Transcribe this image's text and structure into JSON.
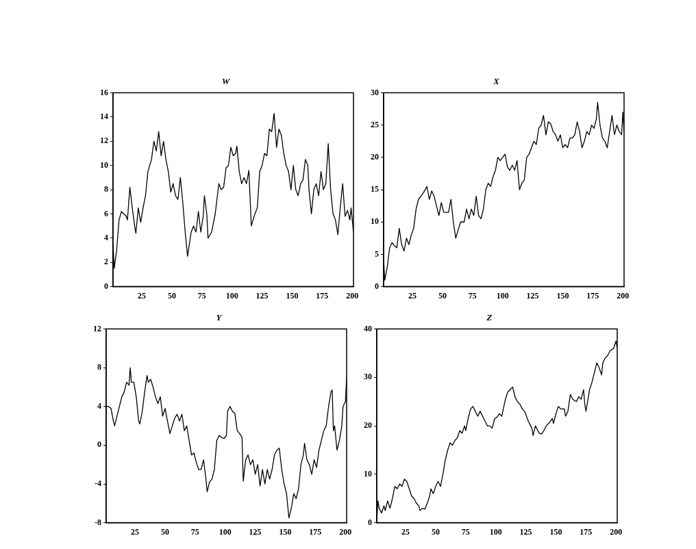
{
  "chart_data": [
    {
      "type": "line",
      "title": "W",
      "color": "#000000",
      "xlim": [
        1,
        201
      ],
      "xticks": [
        25,
        50,
        75,
        100,
        125,
        150,
        175,
        200
      ],
      "ylim": [
        0,
        16
      ],
      "yticks": [
        0,
        2,
        4,
        6,
        8,
        10,
        12,
        14,
        16
      ],
      "x": [
        1,
        2,
        4,
        6,
        8,
        12,
        13,
        15,
        17,
        19,
        20,
        22,
        24,
        26,
        28,
        30,
        33,
        35,
        37,
        39,
        41,
        43,
        45,
        47,
        49,
        51,
        53,
        55,
        57,
        59,
        61,
        63,
        66,
        68,
        70,
        72,
        74,
        76,
        77,
        79,
        80,
        83,
        86,
        89,
        91,
        93,
        95,
        97,
        99,
        101,
        103,
        104,
        106,
        108,
        110,
        112,
        114,
        116,
        119,
        121,
        123,
        125,
        127,
        129,
        131,
        133,
        135,
        137,
        139,
        141,
        143,
        145,
        147,
        149,
        151,
        153,
        155,
        157,
        159,
        161,
        163,
        164,
        166,
        168,
        170,
        172,
        174,
        176,
        178,
        180,
        182,
        184,
        186,
        188,
        190,
        192,
        194,
        196,
        198,
        199,
        201
      ],
      "values": [
        3.5,
        1.5,
        3,
        5.5,
        6.2,
        5.8,
        5.5,
        8.2,
        6.5,
        5,
        4.4,
        6.5,
        5.3,
        6.5,
        7.5,
        9.5,
        10.5,
        12,
        11.2,
        12.8,
        10.8,
        12,
        10.5,
        9.5,
        7.8,
        8.5,
        7.5,
        7.2,
        9,
        7,
        4.5,
        2.5,
        4.5,
        5,
        4.5,
        6.2,
        4.5,
        5.8,
        7.5,
        6,
        4,
        4.5,
        6,
        8.5,
        8,
        8.2,
        9.8,
        10,
        11.5,
        10.8,
        11,
        11.6,
        9.5,
        8.5,
        9,
        8.5,
        9.6,
        5,
        6,
        6.5,
        9.5,
        10,
        11,
        10.8,
        13,
        12.8,
        14.3,
        11.5,
        13,
        12.5,
        11,
        10,
        9.5,
        8,
        10,
        8,
        7.5,
        8.5,
        8.8,
        10.5,
        10,
        8,
        6,
        8,
        8.5,
        7.5,
        9.5,
        8,
        8.5,
        11.8,
        8,
        6,
        5.5,
        4.3,
        6.5,
        8.5,
        5.8,
        6.3,
        5.5,
        6.5,
        4.5
      ]
    },
    {
      "type": "line",
      "title": "X",
      "color": "#000000",
      "xlim": [
        1,
        201
      ],
      "xticks": [
        25,
        50,
        75,
        100,
        125,
        150,
        175,
        200
      ],
      "ylim": [
        0,
        30
      ],
      "yticks": [
        0,
        5,
        10,
        15,
        20,
        25,
        30
      ],
      "x": [
        1,
        2,
        4,
        6,
        8,
        10,
        12,
        14,
        16,
        18,
        20,
        22,
        24,
        26,
        28,
        30,
        32,
        34,
        37,
        39,
        41,
        43,
        45,
        47,
        49,
        51,
        53,
        55,
        57,
        59,
        61,
        65,
        68,
        70,
        72,
        74,
        76,
        78,
        80,
        82,
        84,
        86,
        88,
        90,
        92,
        94,
        96,
        98,
        100,
        102,
        104,
        106,
        108,
        110,
        112,
        114,
        116,
        118,
        120,
        122,
        124,
        126,
        128,
        130,
        132,
        134,
        136,
        138,
        140,
        142,
        144,
        146,
        148,
        150,
        152,
        154,
        156,
        158,
        160,
        162,
        164,
        166,
        168,
        170,
        172,
        174,
        176,
        178,
        179,
        181,
        183,
        185,
        187,
        189,
        191,
        193,
        195,
        197,
        199,
        200,
        201
      ],
      "values": [
        4,
        1,
        3,
        6,
        6.8,
        6.3,
        6,
        9,
        6.5,
        5.5,
        7.5,
        6.5,
        8,
        9,
        12,
        13.5,
        14,
        14.5,
        15.5,
        13.5,
        14.8,
        14,
        12.5,
        11,
        13,
        11.5,
        11.5,
        11.5,
        13.5,
        10,
        7.5,
        10,
        10,
        12,
        10.5,
        12,
        11,
        14,
        11,
        10.5,
        12,
        15,
        16,
        15.5,
        17,
        18,
        20,
        19.5,
        20,
        20.5,
        18.5,
        18,
        18.8,
        18,
        19.5,
        15,
        16,
        16.5,
        20,
        20.5,
        21.5,
        22.5,
        22,
        24.5,
        25,
        26.5,
        23.5,
        25.5,
        25.2,
        24,
        23.5,
        22.5,
        23.5,
        21.5,
        22,
        21.5,
        23,
        23,
        23.5,
        25.5,
        24,
        21.5,
        22.5,
        24,
        23.5,
        25,
        24.5,
        26,
        28.5,
        25,
        23,
        22.5,
        21.5,
        24,
        26.5,
        23.5,
        25,
        24,
        23.5,
        27,
        24
      ]
    },
    {
      "type": "line",
      "title": "Y",
      "color": "#000000",
      "xlim": [
        1,
        201
      ],
      "xticks": [
        25,
        50,
        75,
        100,
        125,
        150,
        175,
        200
      ],
      "ylim": [
        -8,
        12
      ],
      "yticks": [
        -8,
        -4,
        0,
        4,
        8,
        12
      ],
      "x": [
        1,
        3,
        5,
        7,
        8,
        10,
        12,
        14,
        16,
        18,
        20,
        21,
        22,
        24,
        26,
        28,
        29,
        31,
        33,
        35,
        36,
        38,
        40,
        42,
        44,
        46,
        48,
        50,
        52,
        54,
        56,
        58,
        60,
        62,
        64,
        66,
        68,
        70,
        72,
        74,
        76,
        78,
        80,
        82,
        84,
        85,
        87,
        89,
        91,
        93,
        95,
        97,
        99,
        101,
        102,
        104,
        106,
        108,
        110,
        112,
        114,
        115,
        117,
        119,
        121,
        123,
        125,
        127,
        129,
        131,
        133,
        135,
        137,
        139,
        141,
        143,
        145,
        147,
        149,
        151,
        153,
        155,
        157,
        159,
        161,
        163,
        165,
        166,
        168,
        170,
        172,
        174,
        176,
        178,
        180,
        182,
        184,
        186,
        188,
        189,
        190,
        191,
        193,
        195,
        197,
        198,
        200,
        201
      ],
      "values": [
        4,
        4,
        3.8,
        2.5,
        2,
        3,
        4,
        5,
        5.5,
        6.5,
        6.2,
        8,
        6.5,
        6.5,
        5,
        2.5,
        2.2,
        3.5,
        5.5,
        7.2,
        6.5,
        6.8,
        6,
        5,
        4.3,
        5,
        3,
        3.8,
        2.5,
        1.2,
        2,
        2.8,
        3.2,
        2.5,
        3.2,
        1.5,
        2,
        0.5,
        -1,
        -0.8,
        -1.8,
        -2.5,
        -2.5,
        -1.5,
        -3.5,
        -4.8,
        -3.8,
        -3.5,
        -2.5,
        0.5,
        1,
        0.8,
        0.7,
        1,
        3.5,
        4,
        3.5,
        3.3,
        1.5,
        1.2,
        0.8,
        -3.7,
        -1.5,
        -1,
        -2,
        -1.5,
        -3,
        -2,
        -4.2,
        -2.5,
        -4,
        -2.5,
        -3.5,
        -2.5,
        -1,
        -0.5,
        -0.3,
        -2.5,
        -4,
        -5,
        -7.5,
        -6.5,
        -5,
        -5.5,
        -4.5,
        -2,
        -1,
        0.2,
        -1.5,
        -2,
        -3,
        -1.5,
        -2.3,
        -0.5,
        0.5,
        1.5,
        2,
        4,
        5.5,
        5.7,
        1.5,
        2,
        -0.5,
        0.5,
        2,
        4,
        4.5,
        7
      ]
    },
    {
      "type": "line",
      "title": "Z",
      "color": "#000000",
      "xlim": [
        1,
        201
      ],
      "xticks": [
        25,
        50,
        75,
        100,
        125,
        150,
        175,
        200
      ],
      "ylim": [
        0,
        40
      ],
      "yticks": [
        0,
        10,
        20,
        30,
        40
      ],
      "x": [
        1,
        2,
        3,
        5,
        7,
        8,
        10,
        12,
        14,
        16,
        18,
        20,
        22,
        24,
        26,
        28,
        30,
        32,
        34,
        36,
        37,
        39,
        41,
        43,
        45,
        46,
        48,
        50,
        52,
        54,
        56,
        58,
        60,
        62,
        64,
        66,
        68,
        70,
        72,
        74,
        75,
        77,
        79,
        81,
        83,
        85,
        87,
        89,
        91,
        93,
        95,
        97,
        99,
        101,
        103,
        105,
        108,
        110,
        112,
        114,
        116,
        118,
        120,
        122,
        124,
        127,
        129,
        130,
        131,
        133,
        136,
        138,
        140,
        142,
        144,
        147,
        148,
        150,
        152,
        154,
        157,
        158,
        160,
        162,
        164,
        167,
        169,
        171,
        173,
        174,
        175,
        178,
        180,
        182,
        184,
        186,
        188,
        189,
        191,
        193,
        195,
        198,
        200,
        201
      ],
      "values": [
        0.5,
        4.5,
        3,
        2,
        3.5,
        2.5,
        4.5,
        3,
        5,
        7.5,
        7,
        8,
        7.5,
        9,
        8.5,
        7,
        5.5,
        5,
        4,
        3.5,
        2.5,
        3,
        2.8,
        4,
        5.5,
        7,
        6,
        7.5,
        8.5,
        7.5,
        10,
        13,
        15,
        16.5,
        16,
        17,
        17.5,
        19,
        18.5,
        20,
        19,
        21.5,
        23.5,
        24,
        23,
        22,
        23,
        22,
        21,
        20,
        20,
        19.5,
        21.5,
        21.8,
        22.5,
        22,
        25.5,
        27,
        27.5,
        28,
        26,
        25,
        24.5,
        23.5,
        23,
        21,
        20,
        19.5,
        18,
        20,
        18.5,
        18.3,
        19,
        20,
        20.5,
        21.5,
        20.5,
        22.5,
        24,
        23.5,
        23.5,
        22,
        23,
        26.5,
        25.5,
        25,
        26,
        25.5,
        27.5,
        24.5,
        23,
        27.5,
        29,
        31,
        33,
        32,
        30.5,
        33,
        34,
        34.5,
        35.5,
        36,
        37.5,
        36
      ]
    }
  ]
}
